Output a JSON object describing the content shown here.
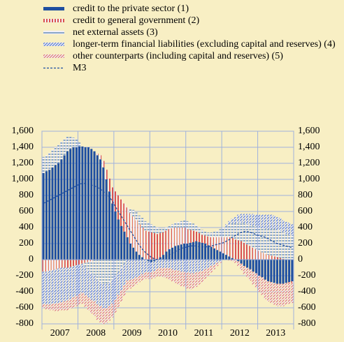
{
  "chart_data": {
    "type": "stacked_bar_line",
    "categories": [
      null,
      null,
      null,
      null,
      null,
      null,
      "2007",
      null,
      null,
      null,
      null,
      null,
      null,
      null,
      null,
      null,
      null,
      null,
      "2008",
      null,
      null,
      null,
      null,
      null,
      null,
      null,
      null,
      null,
      null,
      null,
      "2009",
      null,
      null,
      null,
      null,
      null,
      null,
      null,
      null,
      null,
      null,
      null,
      "2010",
      null,
      null,
      null,
      null,
      null,
      null,
      null,
      null,
      null,
      null,
      null,
      "2011",
      null,
      null,
      null,
      null,
      null,
      null,
      null,
      null,
      null,
      null,
      null,
      "2012",
      null,
      null,
      null,
      null,
      null,
      null,
      null,
      null,
      null,
      null,
      null,
      "2013",
      null,
      null,
      null,
      null,
      null
    ],
    "ylim": [
      -800,
      1600
    ],
    "yticks": [
      -800,
      -600,
      -400,
      -200,
      0,
      200,
      400,
      600,
      800,
      {
        "value": 1000,
        "label": "1,000"
      },
      {
        "value": 1200,
        "label": "1,200"
      },
      {
        "value": 1400,
        "label": "1,400"
      },
      {
        "value": 1600,
        "label": "1,600"
      }
    ],
    "grid": true,
    "series": [
      {
        "name": "credit to the private sector (1)",
        "color": "#1f4fa0",
        "hatch": "solid",
        "values": [
          1080,
          1100,
          1120,
          1150,
          1180,
          1200,
          1250,
          1300,
          1350,
          1380,
          1400,
          1400,
          1410,
          1410,
          1400,
          1400,
          1380,
          1350,
          1300,
          1250,
          1150,
          1000,
          850,
          700,
          600,
          500,
          420,
          350,
          280,
          200,
          150,
          100,
          60,
          30,
          0,
          -20,
          -30,
          -20,
          0,
          30,
          60,
          100,
          130,
          150,
          170,
          180,
          190,
          200,
          200,
          210,
          220,
          230,
          220,
          210,
          200,
          180,
          160,
          140,
          120,
          100,
          80,
          60,
          40,
          20,
          0,
          -20,
          -50,
          -80,
          -100,
          -120,
          -150,
          -170,
          -200,
          -220,
          -250,
          -270,
          -280,
          -290,
          -300,
          -300,
          -300,
          -290,
          -280,
          -270
        ]
      },
      {
        "name": "credit to general government (2)",
        "color": "#d9534f",
        "hatch": "vertical",
        "values": [
          -150,
          -150,
          -140,
          -130,
          -120,
          -110,
          -100,
          -100,
          -100,
          -90,
          -80,
          -70,
          -60,
          -50,
          -40,
          -30,
          -20,
          0,
          20,
          50,
          80,
          120,
          160,
          200,
          250,
          300,
          330,
          350,
          370,
          380,
          390,
          390,
          380,
          370,
          360,
          350,
          340,
          330,
          320,
          300,
          280,
          260,
          250,
          240,
          230,
          220,
          210,
          200,
          180,
          160,
          140,
          120,
          110,
          100,
          100,
          110,
          120,
          140,
          160,
          180,
          200,
          220,
          240,
          250,
          250,
          240,
          230,
          210,
          190,
          170,
          150,
          130,
          110,
          90,
          70,
          60,
          50,
          40,
          30,
          20,
          10,
          0,
          -10,
          -20
        ]
      },
      {
        "name": "net external assets (3)",
        "color": "#8aa6c8",
        "hatch": "horizontal",
        "values": [
          200,
          200,
          210,
          220,
          220,
          230,
          220,
          200,
          180,
          150,
          120,
          100,
          50,
          0,
          -50,
          -100,
          -150,
          -200,
          -250,
          -280,
          -300,
          -300,
          -280,
          -250,
          -200,
          -150,
          -100,
          -50,
          0,
          50,
          80,
          100,
          110,
          120,
          120,
          110,
          100,
          90,
          80,
          60,
          50,
          40,
          40,
          50,
          60,
          70,
          80,
          90,
          100,
          100,
          90,
          80,
          70,
          60,
          50,
          50,
          60,
          70,
          80,
          100,
          120,
          140,
          160,
          180,
          200,
          220,
          230,
          240,
          250,
          260,
          270,
          280,
          290,
          300,
          310,
          320,
          330,
          340,
          340,
          340,
          330,
          320,
          310,
          300
        ]
      },
      {
        "name": "longer-term financial liabilities (excluding capital and reserves) (4)",
        "color": "#5b7fd0",
        "hatch": "diagonal",
        "values": [
          -400,
          -410,
          -420,
          -420,
          -430,
          -430,
          -430,
          -420,
          -410,
          -400,
          -390,
          -380,
          -370,
          -360,
          -350,
          -340,
          -330,
          -320,
          -310,
          -300,
          -300,
          -300,
          -300,
          -300,
          -300,
          -290,
          -280,
          -270,
          -260,
          -250,
          -240,
          -220,
          -200,
          -180,
          -160,
          -140,
          -130,
          -120,
          -110,
          -100,
          -100,
          -100,
          -110,
          -120,
          -130,
          -140,
          -150,
          -150,
          -160,
          -170,
          -170,
          -160,
          -150,
          -140,
          -120,
          -100,
          -80,
          -60,
          -40,
          -20,
          0,
          20,
          40,
          60,
          80,
          100,
          110,
          120,
          130,
          140,
          150,
          150,
          160,
          170,
          180,
          180,
          180,
          170,
          160,
          160,
          150,
          150,
          150,
          140
        ]
      },
      {
        "name": "other counterparts (including capital and reserves) (5)",
        "color": "#e07a70",
        "hatch": "diagonal",
        "values": [
          -50,
          -60,
          -70,
          -80,
          -90,
          -100,
          -100,
          -110,
          -120,
          -120,
          -130,
          -130,
          -130,
          -140,
          -150,
          -160,
          -170,
          -180,
          -190,
          -200,
          -200,
          -190,
          -180,
          -170,
          -160,
          -150,
          -140,
          -130,
          -120,
          -110,
          -100,
          -90,
          -80,
          -80,
          -80,
          -80,
          -80,
          -90,
          -100,
          -110,
          -120,
          -130,
          -140,
          -150,
          -160,
          -170,
          -180,
          -190,
          -200,
          -200,
          -190,
          -180,
          -160,
          -140,
          -120,
          -100,
          -80,
          -60,
          -40,
          -20,
          0,
          0,
          -10,
          -20,
          -40,
          -60,
          -80,
          -100,
          -120,
          -140,
          -160,
          -180,
          -200,
          -220,
          -240,
          -250,
          -260,
          -270,
          -280,
          -280,
          -280,
          -270,
          -260,
          -250
        ]
      }
    ],
    "line": {
      "name": "M3",
      "color": "#1f4fa0",
      "values": [
        700,
        720,
        740,
        760,
        780,
        800,
        820,
        840,
        860,
        880,
        900,
        920,
        940,
        950,
        950,
        940,
        930,
        920,
        900,
        880,
        850,
        820,
        780,
        730,
        660,
        600,
        540,
        480,
        420,
        360,
        300,
        240,
        180,
        130,
        90,
        60,
        30,
        10,
        0,
        10,
        20,
        40,
        60,
        80,
        100,
        120,
        140,
        150,
        160,
        170,
        170,
        170,
        160,
        160,
        160,
        160,
        170,
        180,
        190,
        200,
        210,
        230,
        250,
        280,
        300,
        320,
        340,
        350,
        350,
        340,
        330,
        310,
        300,
        290,
        280,
        260,
        240,
        220,
        200,
        190,
        180,
        170,
        160,
        150
      ]
    }
  }
}
